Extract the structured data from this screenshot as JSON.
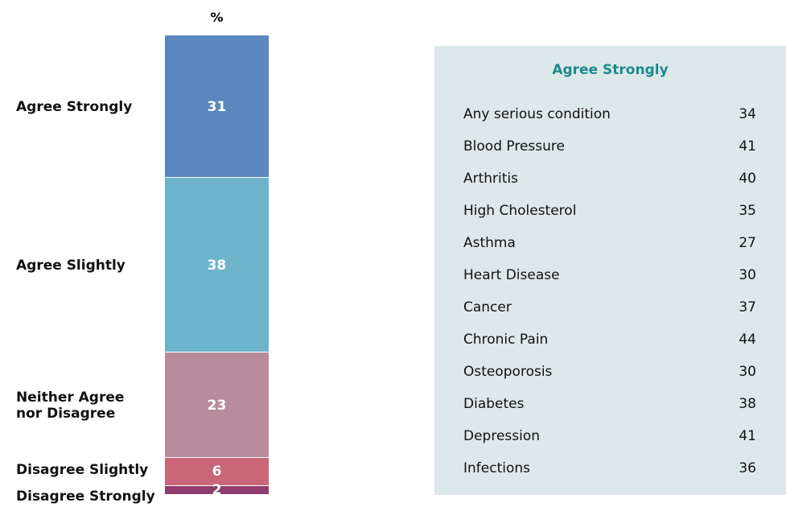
{
  "chart_data": {
    "type": "stacked_bar",
    "ylabel": "%",
    "series": [
      {
        "name": "Agree Strongly",
        "color": "#5b87bf",
        "values": [
          31
        ]
      },
      {
        "name": "Agree Slightly",
        "color": "#6db3cc",
        "values": [
          38
        ]
      },
      {
        "name": "Neither Agree nor Disagree",
        "color": "#b88c9c",
        "values": [
          23
        ]
      },
      {
        "name": "Disagree Slightly",
        "color": "#c96778",
        "values": [
          6
        ]
      },
      {
        "name": "Disagree Strongly",
        "color": "#8e3d6e",
        "values": [
          2
        ]
      }
    ]
  },
  "table": {
    "title": "Agree Strongly",
    "rows": [
      [
        "Any serious condition",
        34
      ],
      [
        "Blood Pressure",
        41
      ],
      [
        "Arthritis",
        40
      ],
      [
        "High Cholesterol",
        35
      ],
      [
        "Asthma",
        27
      ],
      [
        "Heart Disease",
        30
      ],
      [
        "Cancer",
        37
      ],
      [
        "Chronic Pain",
        44
      ],
      [
        "Osteoporosis",
        30
      ],
      [
        "Diabetes",
        38
      ],
      [
        "Depression",
        41
      ],
      [
        "Infections",
        36
      ]
    ]
  }
}
